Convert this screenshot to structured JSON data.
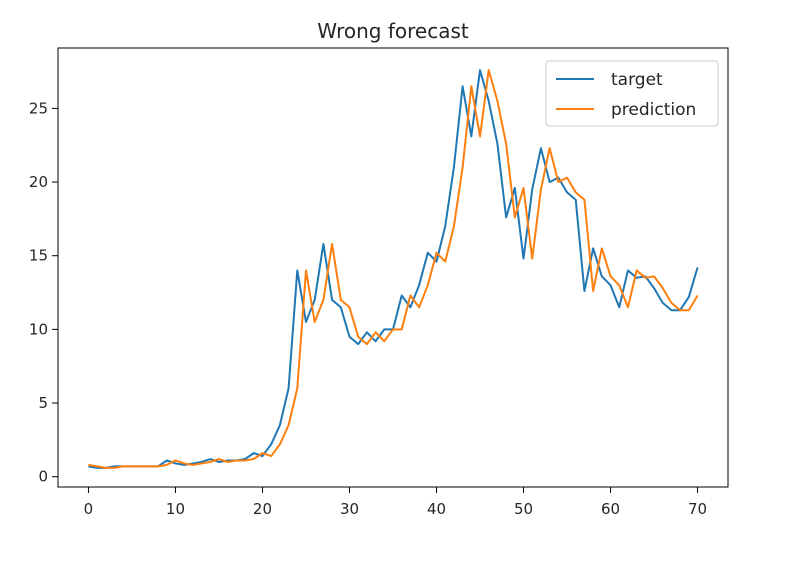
{
  "chart_data": {
    "type": "line",
    "title": "Wrong forecast",
    "xlabel": "",
    "ylabel": "",
    "xlim": [
      -3.5,
      73.5
    ],
    "ylim": [
      -0.7,
      29.1
    ],
    "xticks": [
      0,
      10,
      20,
      30,
      40,
      50,
      60,
      70
    ],
    "yticks": [
      0,
      5,
      10,
      15,
      20,
      25
    ],
    "grid": false,
    "legend": "top-right",
    "x": [
      0,
      1,
      2,
      3,
      4,
      5,
      6,
      7,
      8,
      9,
      10,
      11,
      12,
      13,
      14,
      15,
      16,
      17,
      18,
      19,
      20,
      21,
      22,
      23,
      24,
      25,
      26,
      27,
      28,
      29,
      30,
      31,
      32,
      33,
      34,
      35,
      36,
      37,
      38,
      39,
      40,
      41,
      42,
      43,
      44,
      45,
      46,
      47,
      48,
      49,
      50,
      51,
      52,
      53,
      54,
      55,
      56,
      57,
      58,
      59,
      60,
      61,
      62,
      63,
      64,
      65,
      66,
      67,
      68,
      69,
      70
    ],
    "series": [
      {
        "name": "target",
        "color": "#1f77b4",
        "values": [
          0.7,
          0.6,
          0.6,
          0.7,
          0.7,
          0.7,
          0.7,
          0.7,
          0.7,
          1.1,
          0.9,
          0.8,
          0.9,
          1.0,
          1.2,
          1.0,
          1.1,
          1.1,
          1.2,
          1.6,
          1.4,
          2.2,
          3.5,
          6.0,
          14.0,
          10.5,
          12.0,
          15.8,
          12.0,
          11.5,
          9.5,
          9.0,
          9.8,
          9.2,
          10.0,
          10.0,
          12.3,
          11.5,
          13.0,
          15.2,
          14.6,
          17.0,
          21.0,
          26.5,
          23.1,
          27.6,
          25.5,
          22.6,
          17.6,
          19.6,
          14.8,
          19.5,
          22.3,
          20.0,
          20.3,
          19.3,
          18.8,
          12.6,
          15.5,
          13.6,
          13.0,
          11.5,
          14.0,
          13.5,
          13.6,
          12.8,
          11.8,
          11.3,
          11.3,
          12.2,
          14.2
        ]
      },
      {
        "name": "prediction",
        "color": "#ff7f0e",
        "values": [
          0.8,
          0.7,
          0.6,
          0.6,
          0.7,
          0.7,
          0.7,
          0.7,
          0.7,
          0.8,
          1.1,
          0.9,
          0.8,
          0.9,
          1.0,
          1.2,
          1.0,
          1.1,
          1.1,
          1.2,
          1.6,
          1.4,
          2.2,
          3.5,
          6.0,
          14.0,
          10.5,
          12.0,
          15.8,
          12.0,
          11.5,
          9.5,
          9.0,
          9.8,
          9.2,
          10.0,
          10.0,
          12.3,
          11.5,
          13.0,
          15.2,
          14.6,
          17.0,
          21.0,
          26.5,
          23.1,
          27.6,
          25.5,
          22.6,
          17.6,
          19.6,
          14.8,
          19.5,
          22.3,
          20.0,
          20.3,
          19.3,
          18.8,
          12.6,
          15.5,
          13.6,
          13.0,
          11.5,
          14.0,
          13.5,
          13.6,
          12.8,
          11.8,
          11.3,
          11.3,
          12.3
        ]
      }
    ]
  }
}
